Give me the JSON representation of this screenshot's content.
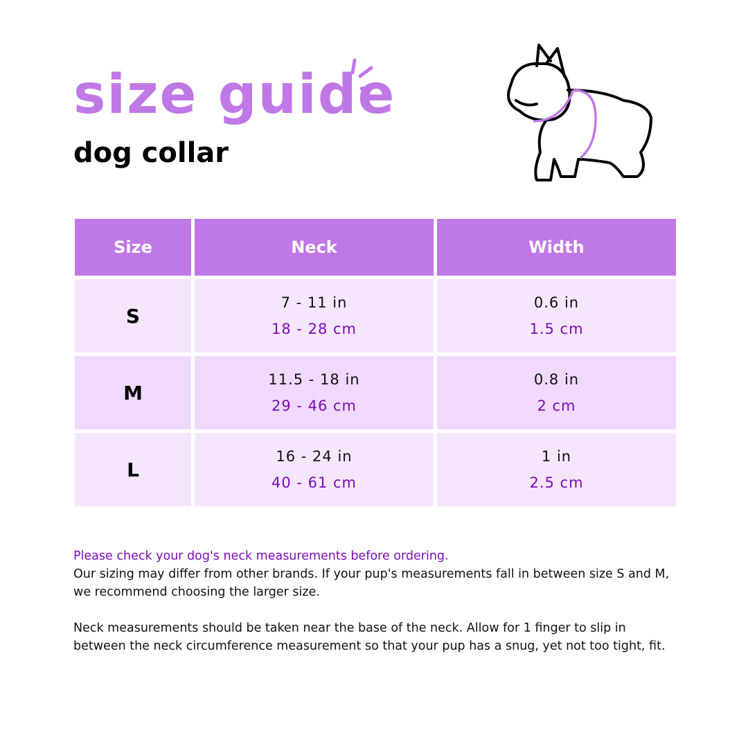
{
  "title": "size guide",
  "subtitle": "dog collar",
  "table": {
    "headers": [
      "Size",
      "Neck",
      "Width"
    ],
    "rows": [
      {
        "size": "S",
        "neck_in": "7 - 11 in",
        "neck_cm": "18 - 28 cm",
        "width_in": "0.6 in",
        "width_cm": "1.5 cm"
      },
      {
        "size": "M",
        "neck_in": "11.5 - 18 in",
        "neck_cm": "29 - 46 cm",
        "width_in": "0.8 in",
        "width_cm": "2 cm"
      },
      {
        "size": "L",
        "neck_in": "16 - 24 in",
        "neck_cm": "40 - 61 cm",
        "width_in": "1 in",
        "width_cm": "2.5 cm"
      }
    ]
  },
  "notes": {
    "highlight": "Please check your dog's neck measurements before ordering.",
    "p1": "Our sizing may differ from other brands. If your pup's measurements fall in between size S and M, we recommend choosing the larger size.",
    "p2": "Neck measurements should be taken near the base of the neck. Allow for 1 finger to slip in between the neck circumference measurement so that your pup has a snug, yet not too tight, fit."
  },
  "colors": {
    "accent": "#c078e6",
    "row_light": "#f6e6fd",
    "row_mid": "#f0d9fc",
    "cm_text": "#7a0cb8"
  },
  "icons": [
    "sparkle-lines-icon",
    "french-bulldog-illustration"
  ]
}
